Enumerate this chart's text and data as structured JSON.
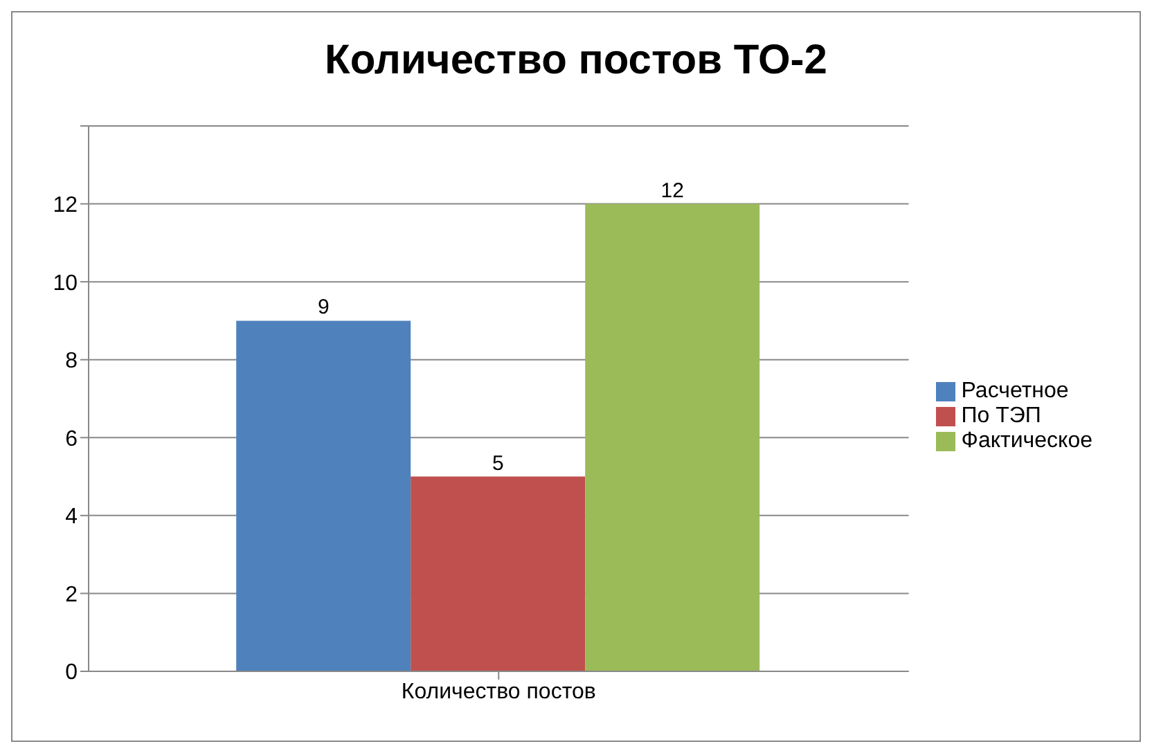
{
  "chart_data": {
    "type": "bar",
    "title": "Количество постов ТО-2",
    "categories": [
      "Количество постов"
    ],
    "series": [
      {
        "name": "Расчетное",
        "color": "#4f81bd",
        "values": [
          9
        ]
      },
      {
        "name": "По ТЭП",
        "color": "#c0504d",
        "values": [
          5
        ]
      },
      {
        "name": "Фактическое",
        "color": "#9bbb59",
        "values": [
          12
        ]
      }
    ],
    "ylim": [
      0,
      14
    ],
    "yticks": [
      0,
      2,
      4,
      6,
      8,
      10,
      12,
      {
        "value": 14,
        "label": null
      }
    ],
    "grid": "y",
    "legend": "right",
    "data_labels": true
  }
}
